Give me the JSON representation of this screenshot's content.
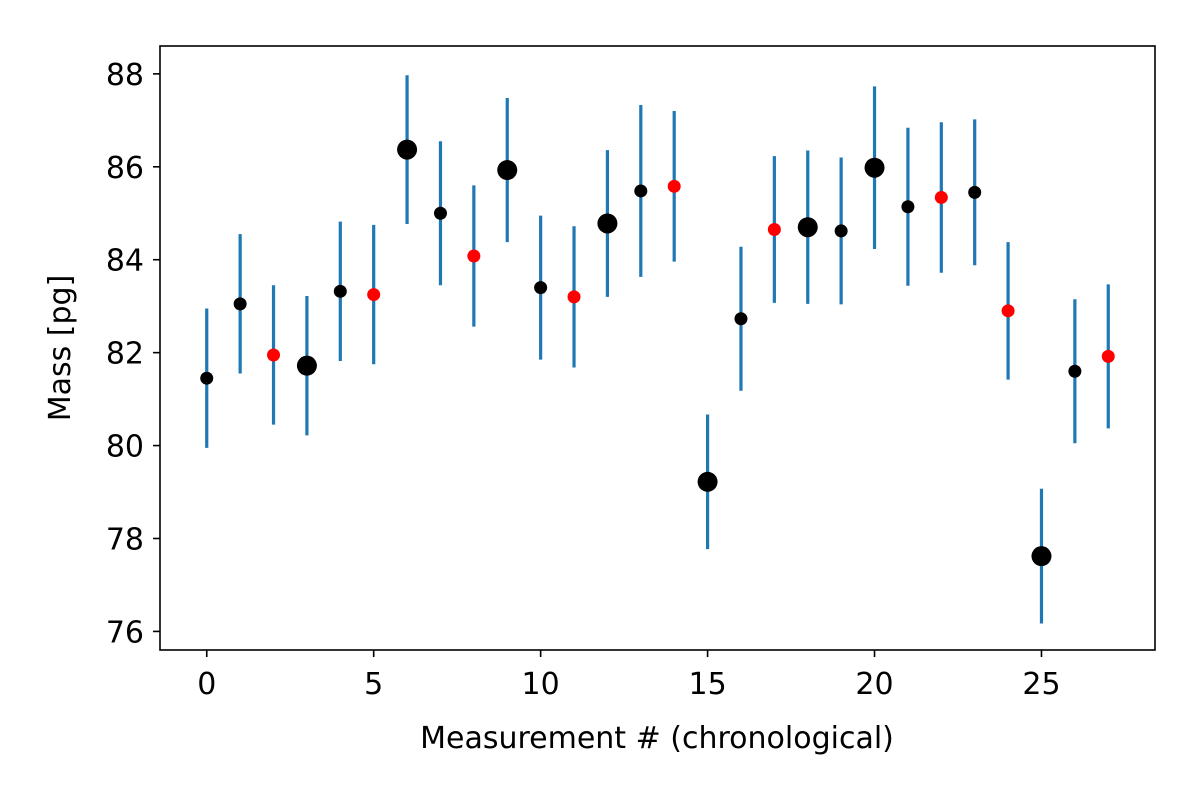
{
  "chart_data": {
    "type": "scatter",
    "title": "",
    "xlabel": "Measurement # (chronological)",
    "ylabel": "Mass [pg]",
    "xlim": [
      -1.4,
      28.4
    ],
    "ylim": [
      75.6,
      88.6
    ],
    "xticks": [
      0,
      5,
      10,
      15,
      20,
      25
    ],
    "yticks": [
      76,
      78,
      80,
      82,
      84,
      86,
      88
    ],
    "grid": false,
    "legend": "none",
    "colors": {
      "errorbar": "#1f77b4",
      "point_black": "#000000",
      "point_red": "#ff0000"
    },
    "marker_sizes": {
      "small": 1,
      "large": 2
    },
    "points": [
      {
        "x": 0,
        "y": 81.45,
        "err": 1.5,
        "color": "black",
        "size": "small"
      },
      {
        "x": 1,
        "y": 83.05,
        "err": 1.5,
        "color": "black",
        "size": "small"
      },
      {
        "x": 2,
        "y": 81.95,
        "err": 1.5,
        "color": "red",
        "size": "small"
      },
      {
        "x": 3,
        "y": 81.72,
        "err": 1.5,
        "color": "black",
        "size": "large"
      },
      {
        "x": 4,
        "y": 83.32,
        "err": 1.5,
        "color": "black",
        "size": "small"
      },
      {
        "x": 5,
        "y": 83.25,
        "err": 1.5,
        "color": "red",
        "size": "small"
      },
      {
        "x": 6,
        "y": 86.37,
        "err": 1.6,
        "color": "black",
        "size": "large"
      },
      {
        "x": 7,
        "y": 85.0,
        "err": 1.55,
        "color": "black",
        "size": "small"
      },
      {
        "x": 8,
        "y": 84.08,
        "err": 1.52,
        "color": "red",
        "size": "small"
      },
      {
        "x": 9,
        "y": 85.93,
        "err": 1.55,
        "color": "black",
        "size": "large"
      },
      {
        "x": 10,
        "y": 83.4,
        "err": 1.55,
        "color": "black",
        "size": "small"
      },
      {
        "x": 11,
        "y": 83.2,
        "err": 1.52,
        "color": "red",
        "size": "small"
      },
      {
        "x": 12,
        "y": 84.78,
        "err": 1.58,
        "color": "black",
        "size": "large"
      },
      {
        "x": 13,
        "y": 85.48,
        "err": 1.85,
        "color": "black",
        "size": "small"
      },
      {
        "x": 14,
        "y": 85.58,
        "err": 1.62,
        "color": "red",
        "size": "small"
      },
      {
        "x": 15,
        "y": 79.22,
        "err": 1.45,
        "color": "black",
        "size": "large"
      },
      {
        "x": 16,
        "y": 82.73,
        "err": 1.55,
        "color": "black",
        "size": "small"
      },
      {
        "x": 17,
        "y": 84.65,
        "err": 1.58,
        "color": "red",
        "size": "small"
      },
      {
        "x": 18,
        "y": 84.7,
        "err": 1.65,
        "color": "black",
        "size": "large"
      },
      {
        "x": 19,
        "y": 84.62,
        "err": 1.58,
        "color": "black",
        "size": "small"
      },
      {
        "x": 20,
        "y": 85.98,
        "err": 1.75,
        "color": "black",
        "size": "large"
      },
      {
        "x": 21,
        "y": 85.14,
        "err": 1.7,
        "color": "black",
        "size": "small"
      },
      {
        "x": 22,
        "y": 85.34,
        "err": 1.62,
        "color": "red",
        "size": "small"
      },
      {
        "x": 23,
        "y": 85.45,
        "err": 1.57,
        "color": "black",
        "size": "small"
      },
      {
        "x": 24,
        "y": 82.9,
        "err": 1.48,
        "color": "red",
        "size": "small"
      },
      {
        "x": 25,
        "y": 77.62,
        "err": 1.45,
        "color": "black",
        "size": "large"
      },
      {
        "x": 26,
        "y": 81.6,
        "err": 1.55,
        "color": "black",
        "size": "small"
      },
      {
        "x": 27,
        "y": 81.92,
        "err": 1.55,
        "color": "red",
        "size": "small"
      }
    ]
  }
}
